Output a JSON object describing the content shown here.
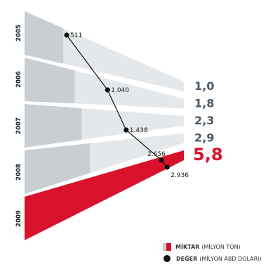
{
  "chart_data": {
    "type": "line",
    "categories": [
      "2005",
      "2006",
      "2007",
      "2008",
      "2009"
    ],
    "series": [
      {
        "name": "MİKTAR (MİLYON TON)",
        "values": [
          1.0,
          1.8,
          2.3,
          2.9,
          5.8
        ],
        "labels": [
          "1,0",
          "1,8",
          "2,3",
          "2,9",
          "5,8"
        ]
      },
      {
        "name": "DEĞER (MİLYON ABD DOLARI)",
        "values": [
          511,
          1040,
          1438,
          2656,
          2936
        ],
        "labels": [
          "511",
          "1.040",
          "1.438",
          "2.656",
          "2.936"
        ]
      }
    ],
    "highlight_index": 4,
    "colors": {
      "band": "#e4e8eb",
      "band_dark": "#c9ced3",
      "highlight": "#d8122a",
      "quantity_text": "#4a5a68",
      "line": "#111111"
    }
  },
  "legend": {
    "quantity_bold": "MİKTAR",
    "quantity_rest": "(MİLYON TON)",
    "value_bold": "DEĞER",
    "value_rest": "(MİLYON ABD DOLARI)"
  }
}
